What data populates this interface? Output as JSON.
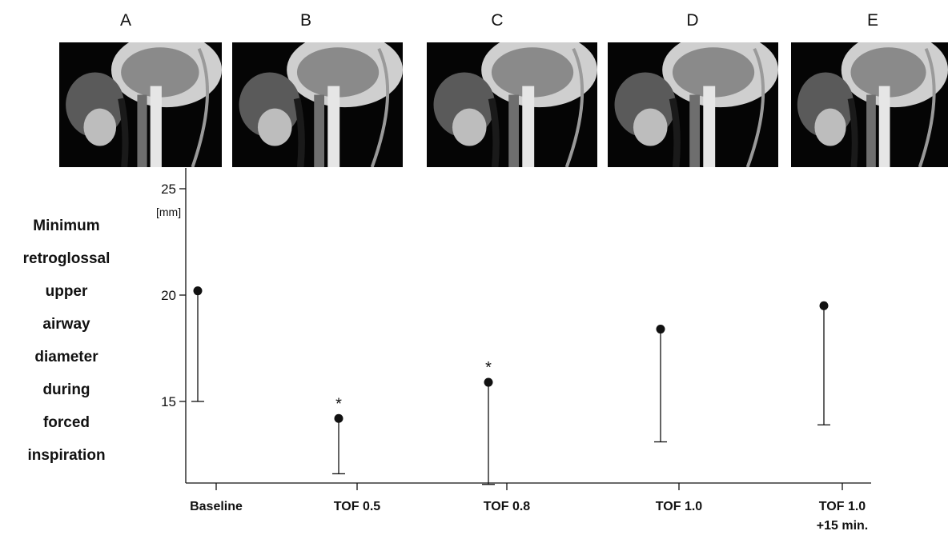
{
  "panels": [
    {
      "letter": "A"
    },
    {
      "letter": "B"
    },
    {
      "letter": "C"
    },
    {
      "letter": "D"
    },
    {
      "letter": "E"
    }
  ],
  "y_label_lines": [
    "Minimum",
    "retroglossal",
    "upper",
    "airway",
    "diameter",
    "during",
    "forced",
    "inspiration"
  ],
  "chart_data": {
    "type": "scatter",
    "title": "",
    "xlabel": "",
    "ylabel": "Minimum retroglossal upper airway diameter during forced inspiration",
    "y_unit": "[mm]",
    "categories": [
      "Baseline",
      "TOF 0.5",
      "TOF 0.8",
      "TOF 1.0",
      "TOF 1.0 +15 min."
    ],
    "category_lines": [
      [
        "Baseline"
      ],
      [
        "TOF 0.5"
      ],
      [
        "TOF 0.8"
      ],
      [
        "TOF 1.0"
      ],
      [
        "TOF 1.0",
        "+15 min."
      ]
    ],
    "values": [
      20.2,
      14.2,
      15.9,
      18.4,
      19.5
    ],
    "error_lower": [
      15.0,
      11.6,
      11.1,
      13.1,
      13.9
    ],
    "significance": [
      "",
      "*",
      "*",
      "",
      ""
    ],
    "y_ticks": [
      15,
      20,
      25
    ],
    "ylim": [
      11.0,
      25.0
    ],
    "grid": false,
    "legend": "none"
  }
}
